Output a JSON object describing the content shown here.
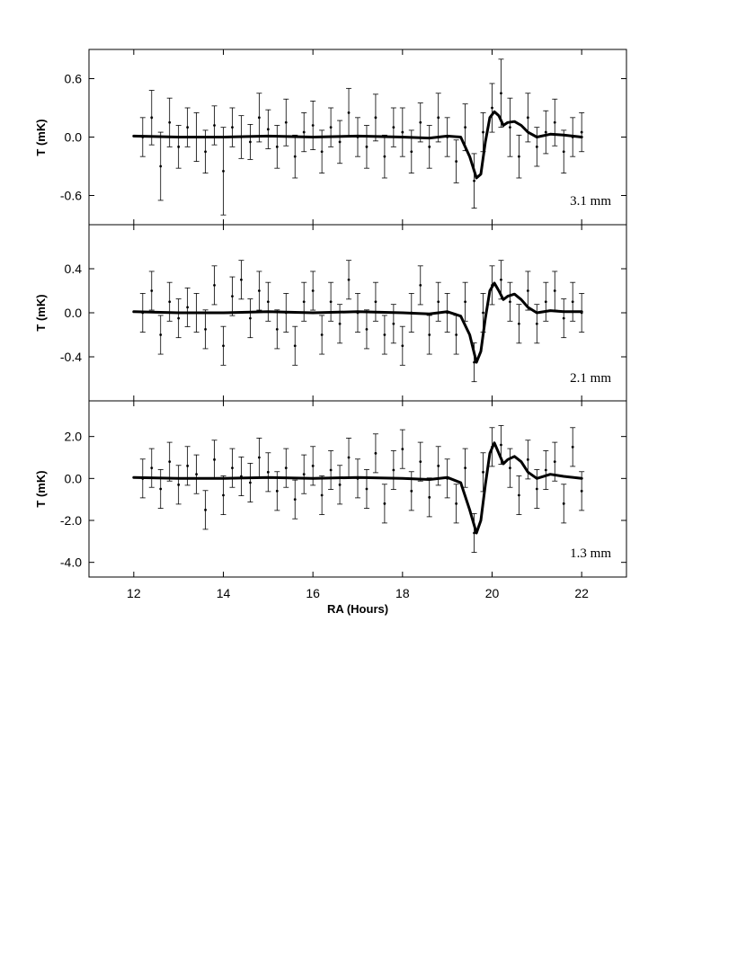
{
  "chart_data": {
    "type": "scatter",
    "xlabel": "RA (Hours)",
    "xlim": [
      11,
      23
    ],
    "x_ticks": [
      12,
      14,
      16,
      18,
      20,
      22
    ],
    "panels": [
      {
        "band": "3.1 mm",
        "ylabel": "T  (mK)",
        "ylim": [
          -0.9,
          0.9
        ],
        "y_ticks": [
          {
            "v": 0.6,
            "label": "0.6"
          },
          {
            "v": 0.0,
            "label": "0.0"
          },
          {
            "v": -0.6,
            "label": "-0.6"
          }
        ],
        "model": {
          "x": [
            12.0,
            13.0,
            14.0,
            15.0,
            16.0,
            17.0,
            18.0,
            18.6,
            19.0,
            19.3,
            19.5,
            19.65,
            19.75,
            19.85,
            19.95,
            20.05,
            20.15,
            20.25,
            20.35,
            20.5,
            20.65,
            20.8,
            21.0,
            21.3,
            21.6,
            22.0
          ],
          "y": [
            0.01,
            0.0,
            0.0,
            0.01,
            0.0,
            0.01,
            0.0,
            -0.01,
            0.01,
            0.0,
            -0.2,
            -0.42,
            -0.38,
            -0.05,
            0.2,
            0.26,
            0.22,
            0.12,
            0.15,
            0.16,
            0.12,
            0.05,
            0.0,
            0.03,
            0.02,
            0.0
          ]
        },
        "points": {
          "x": [
            12.2,
            12.4,
            12.6,
            12.8,
            13.0,
            13.2,
            13.4,
            13.6,
            13.8,
            14.0,
            14.2,
            14.4,
            14.6,
            14.8,
            15.0,
            15.2,
            15.4,
            15.6,
            15.8,
            16.0,
            16.2,
            16.4,
            16.6,
            16.8,
            17.0,
            17.2,
            17.4,
            17.6,
            17.8,
            18.0,
            18.2,
            18.4,
            18.6,
            18.8,
            19.0,
            19.2,
            19.4,
            19.6,
            19.8,
            20.0,
            20.2,
            20.4,
            20.6,
            20.8,
            21.0,
            21.2,
            21.4,
            21.6,
            21.8,
            22.0
          ],
          "y": [
            0.0,
            0.2,
            -0.3,
            0.15,
            -0.1,
            0.1,
            0.0,
            -0.15,
            0.12,
            -0.35,
            0.1,
            0.0,
            -0.05,
            0.2,
            0.08,
            -0.1,
            0.15,
            -0.2,
            0.05,
            0.12,
            -0.15,
            0.1,
            -0.05,
            0.25,
            0.0,
            -0.1,
            0.2,
            -0.2,
            0.1,
            0.05,
            -0.15,
            0.15,
            -0.1,
            0.2,
            0.0,
            -0.25,
            0.1,
            -0.45,
            0.05,
            0.3,
            0.45,
            0.1,
            -0.2,
            0.2,
            -0.1,
            0.05,
            0.15,
            -0.15,
            0.0,
            0.05
          ],
          "err": [
            0.2,
            0.28,
            0.35,
            0.25,
            0.22,
            0.2,
            0.25,
            0.22,
            0.2,
            0.45,
            0.2,
            0.22,
            0.18,
            0.25,
            0.2,
            0.22,
            0.24,
            0.22,
            0.2,
            0.25,
            0.22,
            0.2,
            0.22,
            0.25,
            0.2,
            0.22,
            0.24,
            0.22,
            0.2,
            0.25,
            0.22,
            0.2,
            0.22,
            0.25,
            0.2,
            0.22,
            0.24,
            0.28,
            0.2,
            0.25,
            0.35,
            0.3,
            0.22,
            0.25,
            0.2,
            0.22,
            0.24,
            0.22,
            0.2,
            0.2
          ]
        }
      },
      {
        "band": "2.1 mm",
        "ylabel": "T (mK)",
        "ylim": [
          -0.8,
          0.8
        ],
        "y_ticks": [
          {
            "v": 0.4,
            "label": "0.4"
          },
          {
            "v": 0.0,
            "label": "0.0"
          },
          {
            "v": -0.4,
            "label": "-0.4"
          }
        ],
        "model": {
          "x": [
            12.0,
            13.0,
            14.0,
            15.0,
            16.0,
            17.0,
            18.0,
            18.6,
            19.0,
            19.3,
            19.5,
            19.65,
            19.75,
            19.85,
            19.95,
            20.05,
            20.15,
            20.25,
            20.35,
            20.5,
            20.65,
            20.8,
            21.0,
            21.3,
            21.6,
            22.0
          ],
          "y": [
            0.01,
            0.0,
            0.0,
            0.01,
            0.0,
            0.01,
            0.0,
            -0.01,
            0.01,
            -0.03,
            -0.2,
            -0.45,
            -0.35,
            -0.05,
            0.2,
            0.27,
            0.2,
            0.12,
            0.15,
            0.17,
            0.12,
            0.05,
            0.0,
            0.02,
            0.01,
            0.01
          ]
        },
        "points": {
          "x": [
            12.2,
            12.4,
            12.6,
            12.8,
            13.0,
            13.2,
            13.4,
            13.6,
            13.8,
            14.0,
            14.2,
            14.4,
            14.6,
            14.8,
            15.0,
            15.2,
            15.4,
            15.6,
            15.8,
            16.0,
            16.2,
            16.4,
            16.6,
            16.8,
            17.0,
            17.2,
            17.4,
            17.6,
            17.8,
            18.0,
            18.2,
            18.4,
            18.6,
            18.8,
            19.0,
            19.2,
            19.4,
            19.6,
            19.8,
            20.0,
            20.2,
            20.4,
            20.6,
            20.8,
            21.0,
            21.2,
            21.4,
            21.6,
            21.8,
            22.0
          ],
          "y": [
            0.0,
            0.2,
            -0.2,
            0.1,
            -0.05,
            0.05,
            0.0,
            -0.15,
            0.25,
            -0.3,
            0.15,
            0.3,
            -0.05,
            0.2,
            0.1,
            -0.15,
            0.0,
            -0.3,
            0.1,
            0.2,
            -0.2,
            0.1,
            -0.1,
            0.3,
            0.0,
            -0.15,
            0.1,
            -0.2,
            -0.1,
            -0.3,
            0.0,
            0.25,
            -0.2,
            0.1,
            0.0,
            -0.2,
            0.1,
            -0.45,
            0.0,
            0.25,
            0.3,
            0.1,
            -0.1,
            0.2,
            -0.1,
            0.1,
            0.2,
            -0.05,
            0.1,
            0.0
          ]
        },
        "err": []
      },
      {
        "band": "1.3 mm",
        "ylabel": "T (mK)",
        "ylim": [
          -4.7,
          3.7
        ],
        "y_ticks": [
          {
            "v": 2.0,
            "label": "2.0"
          },
          {
            "v": 0.0,
            "label": "0.0"
          },
          {
            "v": -2.0,
            "label": "-2.0"
          },
          {
            "v": -4.0,
            "label": "-4.0"
          }
        ],
        "model": {
          "x": [
            12.0,
            13.0,
            14.0,
            15.0,
            16.0,
            17.0,
            18.0,
            18.6,
            19.0,
            19.3,
            19.5,
            19.65,
            19.75,
            19.85,
            19.95,
            20.05,
            20.15,
            20.25,
            20.35,
            20.5,
            20.65,
            20.8,
            21.0,
            21.3,
            21.6,
            22.0
          ],
          "y": [
            0.05,
            0.0,
            0.0,
            0.05,
            0.0,
            0.05,
            0.0,
            -0.05,
            0.05,
            -0.2,
            -1.5,
            -2.6,
            -2.0,
            -0.3,
            1.2,
            1.7,
            1.2,
            0.7,
            0.9,
            1.05,
            0.8,
            0.3,
            0.0,
            0.2,
            0.1,
            0.0
          ]
        },
        "points": {
          "x": [
            12.2,
            12.4,
            12.6,
            12.8,
            13.0,
            13.2,
            13.4,
            13.6,
            13.8,
            14.0,
            14.2,
            14.4,
            14.6,
            14.8,
            15.0,
            15.2,
            15.4,
            15.6,
            15.8,
            16.0,
            16.2,
            16.4,
            16.6,
            16.8,
            17.0,
            17.2,
            17.4,
            17.6,
            17.8,
            18.0,
            18.2,
            18.4,
            18.6,
            18.8,
            19.0,
            19.2,
            19.4,
            19.6,
            19.8,
            20.0,
            20.2,
            20.4,
            20.6,
            20.8,
            21.0,
            21.2,
            21.4,
            21.6,
            21.8,
            22.0
          ],
          "y": [
            0.0,
            0.5,
            -0.5,
            0.8,
            -0.3,
            0.6,
            0.2,
            -1.5,
            0.9,
            -0.8,
            0.5,
            0.1,
            -0.2,
            1.0,
            0.3,
            -0.6,
            0.5,
            -1.0,
            0.2,
            0.6,
            -0.8,
            0.4,
            -0.3,
            1.0,
            0.0,
            -0.5,
            1.2,
            -1.2,
            0.4,
            1.4,
            -0.6,
            0.8,
            -0.9,
            0.6,
            0.0,
            -1.2,
            0.5,
            -2.6,
            0.3,
            1.5,
            1.6,
            0.5,
            -0.8,
            0.9,
            -0.5,
            0.4,
            0.8,
            -1.2,
            1.5,
            -0.6
          ]
        }
      }
    ]
  }
}
